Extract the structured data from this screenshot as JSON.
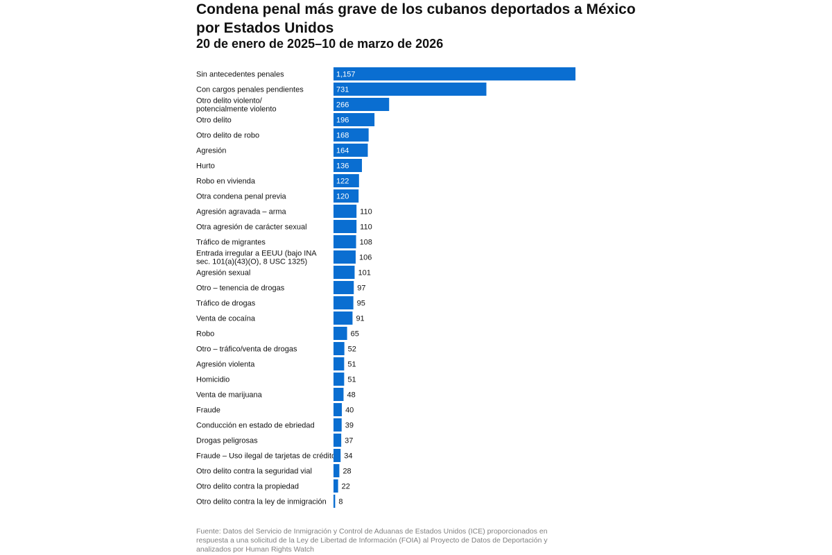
{
  "header": {
    "title": "Condena penal más grave de los cubanos deportados a México por Estados Unidos",
    "subtitle": "20 de enero de 2025–10 de marzo de 2026"
  },
  "footer": {
    "source": "Fuente: Datos del Servicio de Inmigración y Control de Aduanas de Estados Unidos (ICE) proporcionados en respuesta a una solicitud de la Ley de Libertad de Información (FOIA) al Proyecto de Datos de Deportación y analizados por Human Rights Watch"
  },
  "colors": {
    "bar": "#0A6ED1",
    "label_inside": "#FFFFFF",
    "label_outside": "#111111"
  },
  "chart_data": {
    "type": "bar",
    "orientation": "horizontal",
    "title": "Condena penal más grave de los cubanos deportados a México por Estados Unidos",
    "subtitle": "20 de enero de 2025–10 de marzo de 2026",
    "xlabel": "",
    "ylabel": "",
    "grid": false,
    "legend": "none",
    "categories": [
      [
        "Sin antecedentes penales"
      ],
      [
        "Con cargos penales pendientes"
      ],
      [
        "Otro delito violento/",
        "potencialmente violento"
      ],
      [
        "Otro delito"
      ],
      [
        "Otro delito de robo"
      ],
      [
        "Agresión"
      ],
      [
        "Hurto"
      ],
      [
        "Robo en vivienda"
      ],
      [
        "Otra condena penal previa"
      ],
      [
        "Agresión agravada – arma"
      ],
      [
        "Otra agresión de carácter sexual"
      ],
      [
        "Tráfico de migrantes"
      ],
      [
        "Entrada irregular a EEUU (bajo INA",
        "sec. 101(a)(43)(O), 8 USC 1325)"
      ],
      [
        "Agresión sexual"
      ],
      [
        "Otro – tenencia de drogas"
      ],
      [
        "Tráfico de drogas"
      ],
      [
        "Venta de cocaína"
      ],
      [
        "Robo"
      ],
      [
        "Otro – tráfico/venta de drogas"
      ],
      [
        "Agresión violenta"
      ],
      [
        "Homicidio"
      ],
      [
        "Venta de marijuana"
      ],
      [
        "Fraude"
      ],
      [
        "Conducción en estado de ebriedad"
      ],
      [
        "Drogas peligrosas"
      ],
      [
        "Fraude – Uso ilegal de tarjetas de crédito"
      ],
      [
        "Otro delito contra la seguridad vial"
      ],
      [
        "Otro delito contra la propiedad"
      ],
      [
        "Otro delito contra la ley de inmigración"
      ]
    ],
    "values": [
      1157,
      731,
      266,
      196,
      168,
      164,
      136,
      122,
      120,
      110,
      110,
      108,
      106,
      101,
      97,
      95,
      91,
      65,
      52,
      51,
      51,
      48,
      40,
      39,
      37,
      34,
      28,
      22,
      8
    ],
    "value_labels": [
      "1,157",
      "731",
      "266",
      "196",
      "168",
      "164",
      "136",
      "122",
      "120",
      "110",
      "110",
      "108",
      "106",
      "101",
      "97",
      "95",
      "91",
      "65",
      "52",
      "51",
      "51",
      "48",
      "40",
      "39",
      "37",
      "34",
      "28",
      "22",
      "8"
    ]
  }
}
